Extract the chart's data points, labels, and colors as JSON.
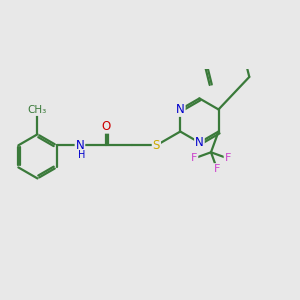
{
  "bg_color": "#e8e8e8",
  "bond_color": "#3a7a3a",
  "bond_width": 1.6,
  "atom_colors": {
    "N": "#0000cc",
    "O": "#cc0000",
    "S": "#ccaa00",
    "F": "#cc44cc",
    "H": "#0000cc",
    "C": "#3a7a3a"
  },
  "font_size": 8.5
}
